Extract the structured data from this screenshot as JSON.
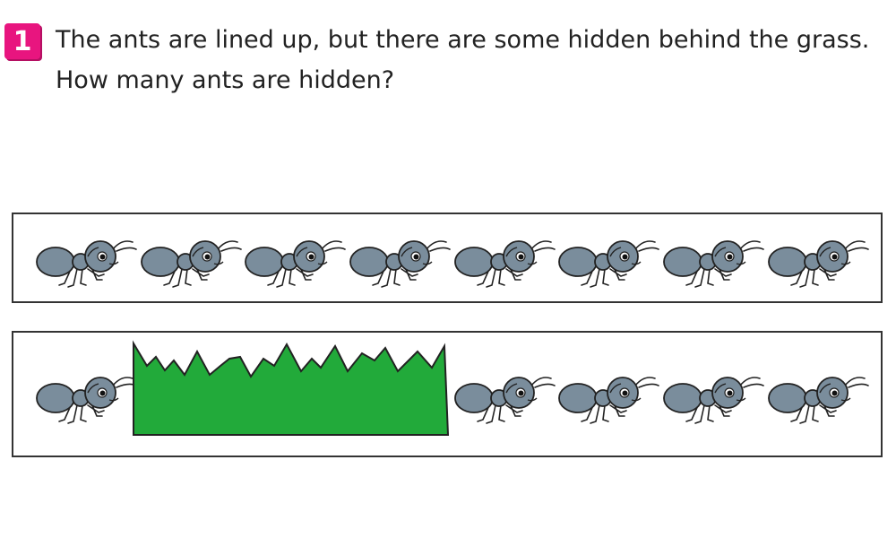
{
  "problem": {
    "number": "1",
    "question": "The ants are lined up, but there are some hidden behind the grass. How many ants are hidden?"
  },
  "colors": {
    "badge": "#e8157f",
    "ant_body": "#7a8d9c",
    "grass": "#22aa3a",
    "outline": "#222222"
  },
  "rows": [
    {
      "visible_ants": 8,
      "has_grass": false
    },
    {
      "visible_ants_left": 1,
      "visible_ants_right": 4,
      "has_grass": true
    }
  ]
}
